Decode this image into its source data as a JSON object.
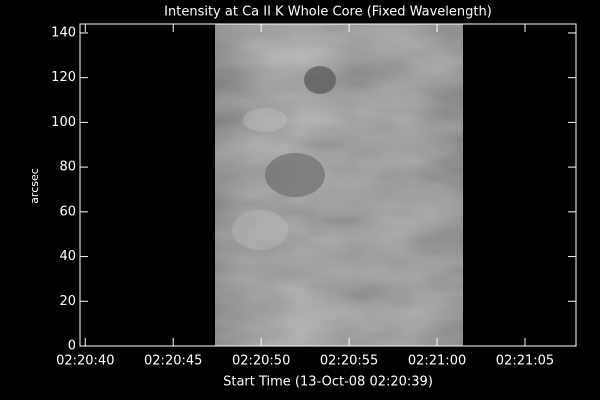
{
  "chart_data": {
    "type": "image",
    "title": "Intensity at Ca II K Whole Core (Fixed Wavelength)",
    "x_label": "Start Time (13-Oct-08 02:20:39)",
    "y_label": "arcsec",
    "xlim": [
      0.7,
      28.9
    ],
    "xticks": [
      {
        "value": 1,
        "label": "02:20:40"
      },
      {
        "value": 6,
        "label": "02:20:45"
      },
      {
        "value": 11,
        "label": "02:20:50"
      },
      {
        "value": 16,
        "label": "02:20:55"
      },
      {
        "value": 21,
        "label": "02:21:00"
      },
      {
        "value": 26,
        "label": "02:21:05"
      }
    ],
    "ylim": [
      0,
      144
    ],
    "yticks": [
      0,
      20,
      40,
      60,
      80,
      100,
      120,
      140
    ]
  }
}
